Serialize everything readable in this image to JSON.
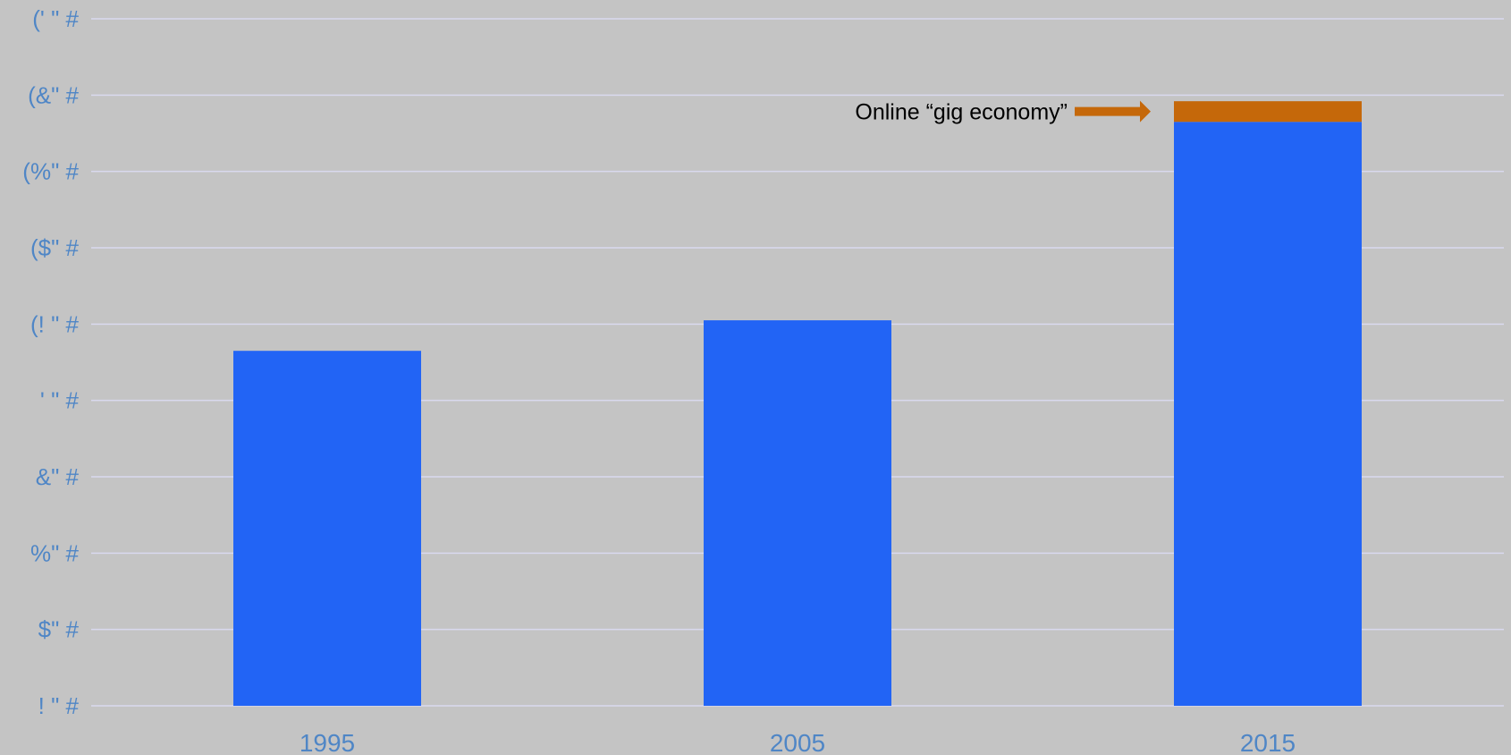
{
  "chart_data": {
    "type": "bar",
    "stacked": true,
    "categories": [
      "1995",
      "2005",
      "2015"
    ],
    "series": [
      {
        "values": [
          4.65,
          5.05,
          7.65
        ],
        "color": "#2264f5"
      },
      {
        "values": [
          0,
          0,
          0.27
        ],
        "color": "#c5680a"
      }
    ],
    "yticks": [
      {
        "value": 0,
        "label": "! \" #"
      },
      {
        "value": 1,
        "label": "$\" #"
      },
      {
        "value": 2,
        "label": "%\" #"
      },
      {
        "value": 3,
        "label": "&\" #"
      },
      {
        "value": 4,
        "label": "' \" #"
      },
      {
        "value": 5,
        "label": "(! \" #"
      },
      {
        "value": 6,
        "label": "($\" #"
      },
      {
        "value": 7,
        "label": "(%\" #"
      },
      {
        "value": 8,
        "label": "(&\" #"
      },
      {
        "value": 9,
        "label": "(' \" #"
      }
    ],
    "ylim": [
      0,
      9
    ],
    "grid": true,
    "grid_color": "#d9d9ee",
    "tick_label_color": "#4f86c6",
    "background": "#c4c4c4",
    "annotation": {
      "text": "Online “gig economy”",
      "category": "2015",
      "series_index": 1,
      "arrow_color": "#c5680a"
    }
  }
}
